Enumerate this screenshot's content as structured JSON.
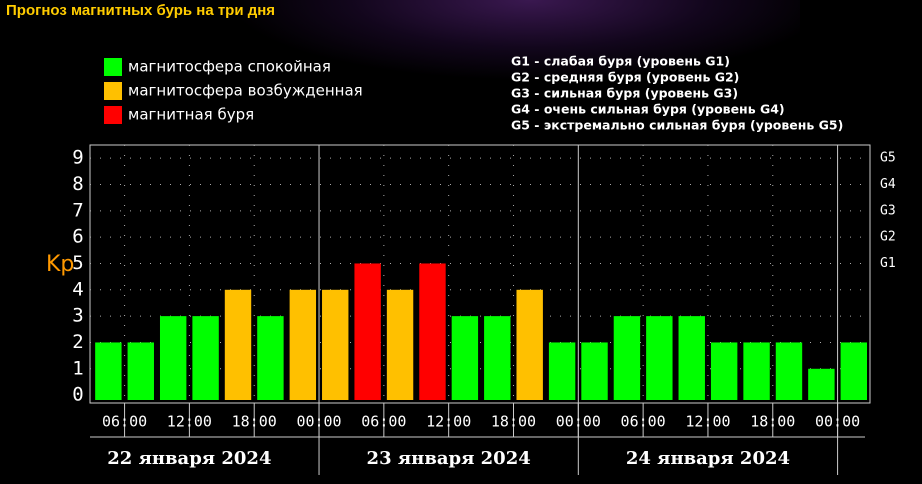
{
  "chart_data": {
    "type": "bar",
    "title": "Прогноз магнитных бурь на три дня",
    "ylabel": "Kp",
    "legend": [
      {
        "name": "магнитосфера спокойная",
        "color": "#00ff00"
      },
      {
        "name": "магнитосфера возбужденная",
        "color": "#ffc000"
      },
      {
        "name": "магнитная буря",
        "color": "#ff0000"
      }
    ],
    "notes": [
      "G1 - слабая буря (уровень G1)",
      "G2 - средняя буря (уровень G2)",
      "G3 - сильная буря (уровень G3)",
      "G4 - очень сильная буря (уровень G4)",
      "G5 - экстремально сильная буря (уровень G5)"
    ],
    "x": [
      3,
      6,
      9,
      12,
      15,
      18,
      21,
      24,
      27,
      30,
      33,
      36,
      39,
      42,
      45,
      48,
      51,
      54,
      57,
      60,
      63,
      66,
      69,
      72
    ],
    "values": [
      2,
      2,
      3,
      3,
      4,
      3,
      4,
      4,
      5,
      4,
      5,
      3,
      3,
      4,
      2,
      2,
      3,
      3,
      3,
      2,
      2,
      2,
      1,
      2
    ],
    "colors": [
      "#00ff00",
      "#00ff00",
      "#00ff00",
      "#00ff00",
      "#ffc000",
      "#00ff00",
      "#ffc000",
      "#ffc000",
      "#ff0000",
      "#ffc000",
      "#ff0000",
      "#00ff00",
      "#00ff00",
      "#ffc000",
      "#00ff00",
      "#00ff00",
      "#00ff00",
      "#00ff00",
      "#00ff00",
      "#00ff00",
      "#00ff00",
      "#00ff00",
      "#00ff00",
      "#00ff00"
    ],
    "xlim": [
      2.8,
      75
    ],
    "xticks": [
      {
        "value": 6,
        "label": "06:00"
      },
      {
        "value": 12,
        "label": "12:00"
      },
      {
        "value": 18,
        "label": "18:00"
      },
      {
        "value": 24,
        "label": "00:00"
      },
      {
        "value": 30,
        "label": "06:00"
      },
      {
        "value": 36,
        "label": "12:00"
      },
      {
        "value": 42,
        "label": "18:00"
      },
      {
        "value": 48,
        "label": "00:00"
      },
      {
        "value": 54,
        "label": "06:00"
      },
      {
        "value": 60,
        "label": "12:00"
      },
      {
        "value": 66,
        "label": "18:00"
      },
      {
        "value": 72,
        "label": "00:00"
      }
    ],
    "days": [
      "22 января 2024",
      "23 января 2024",
      "24 января 2024"
    ],
    "ylim": [
      -0.3,
      9.5
    ],
    "yticks": [
      0,
      1,
      2,
      3,
      4,
      5,
      6,
      7,
      8,
      9
    ],
    "y2lim": [
      -0.3,
      9.5
    ],
    "y2ticks": [
      {
        "value": 5,
        "label": "G1"
      },
      {
        "value": 6,
        "label": "G2"
      },
      {
        "value": 7,
        "label": "G3"
      },
      {
        "value": 8,
        "label": "G4"
      },
      {
        "value": 9,
        "label": "G5"
      }
    ],
    "grid": true
  }
}
